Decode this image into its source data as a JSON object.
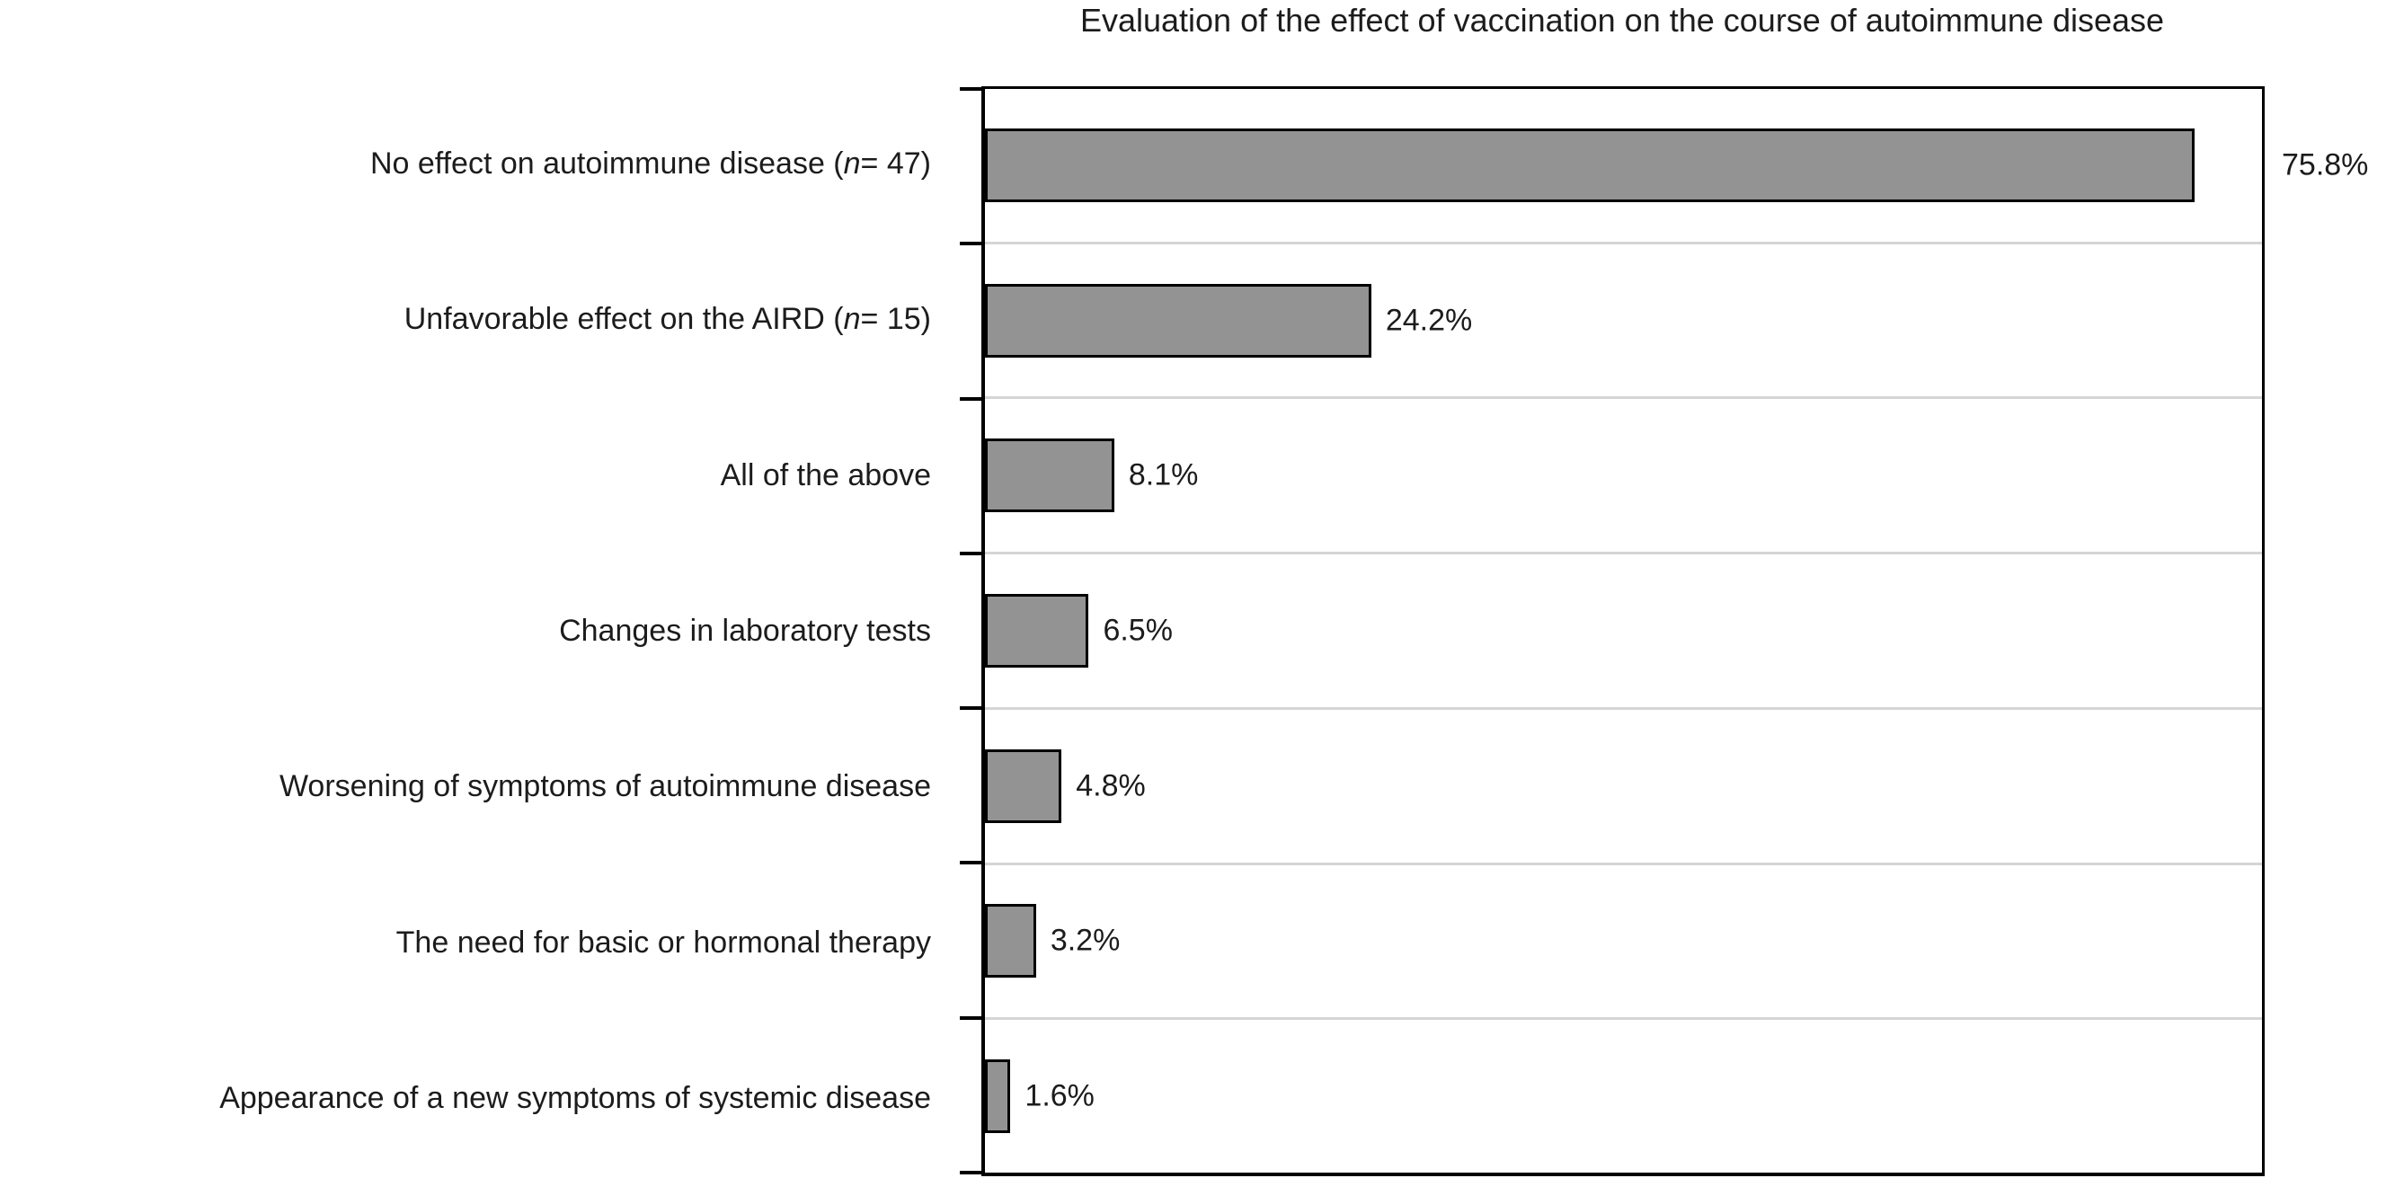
{
  "title": "Evaluation of the effect of vaccination on the course of autoimmune disease",
  "chart_data": {
    "type": "bar",
    "orientation": "horizontal",
    "title": "Evaluation of the effect of vaccination on the course of autoimmune disease",
    "categories": [
      "No effect on autoimmune disease (n = 47)",
      "Unfavorable effect on the AIRD (n = 15)",
      "All of the above",
      "Changes in laboratory tests",
      "Worsening of symptoms of autoimmune disease",
      "The need for basic or hormonal therapy",
      "Appearance of a new symptoms of systemic disease"
    ],
    "values": [
      75.8,
      24.2,
      8.1,
      6.5,
      4.8,
      3.2,
      1.6
    ],
    "value_labels": [
      "75.8%",
      "24.2%",
      "8.1%",
      "6.5%",
      "4.8%",
      "3.2%",
      "1.6%"
    ],
    "xlabel": "",
    "ylabel": "",
    "xlim": [
      0,
      80
    ],
    "grid": "horizontal gridlines at category boundaries",
    "legend": "none",
    "bar_color": "#939393",
    "bar_border_color": "#000000",
    "gridline_color": "#d5d5d5",
    "axis_color": "#000000"
  }
}
